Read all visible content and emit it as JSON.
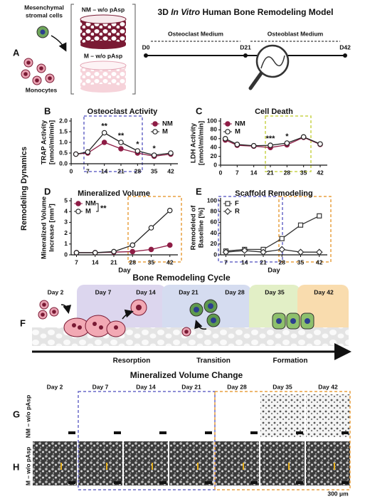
{
  "figure": {
    "panel_labels": [
      "A",
      "B",
      "C",
      "D",
      "E",
      "F",
      "G",
      "H"
    ],
    "model_title": [
      "3D ",
      "In Vitro",
      " Human Bone Remodeling Model"
    ],
    "msc_label": [
      "Mesenchymal",
      "stromal cells"
    ],
    "monocytes_label": "Monocytes",
    "scaffold_nm": "NM – w/o pAsp",
    "scaffold_m": "M – w/o pAsp",
    "timeline": {
      "osteoclast_medium": "Osteoclast Medium",
      "osteoblast_medium": "Osteoblast Medium",
      "days": [
        "D0",
        "D21",
        "D42"
      ]
    },
    "dynamics_label": "Remodeling Dynamics",
    "cycle": {
      "title": "Bone Remodeling Cycle",
      "days": [
        "Day 2",
        "Day 7",
        "Day 14",
        "Day 21",
        "Day 28",
        "Day 35",
        "Day 42"
      ],
      "phases": [
        "Resorption",
        "Transition",
        "Formation"
      ]
    },
    "volume_change": {
      "title": "Mineralized Volume Change",
      "days": [
        "Day 2",
        "Day 7",
        "Day 14",
        "Day 21",
        "Day 28",
        "Day 35",
        "Day 42"
      ],
      "rows": [
        "NM – w/o pAsp",
        "M – w/o pAsp"
      ],
      "scale_bar": "300 μm"
    }
  },
  "chart_data": [
    {
      "type": "line",
      "title": "Osteoclast Activity",
      "ylabel": [
        "TRAP Activity",
        "[nmol/ml/min]"
      ],
      "x": [
        2,
        7,
        14,
        21,
        28,
        35,
        42
      ],
      "xlim": [
        0,
        45
      ],
      "xticks": [
        0,
        7,
        14,
        21,
        28,
        35,
        42
      ],
      "ylim": [
        0,
        2
      ],
      "yticks": [
        {
          "value": 0,
          "label": "0.0"
        },
        {
          "value": 0.5,
          "label": "0.5"
        },
        {
          "value": 1,
          "label": "1.0"
        },
        {
          "value": 1.5,
          "label": "1.5"
        },
        {
          "value": 2,
          "label": "2.0"
        }
      ],
      "legend": "upper right",
      "series": [
        {
          "name": "NM",
          "color": "#8e1c45",
          "marker": "circle",
          "filled": true,
          "values": [
            0.45,
            0.5,
            1.0,
            0.7,
            0.5,
            0.35,
            0.45
          ]
        },
        {
          "name": "M",
          "color": "#222222",
          "marker": "circle",
          "filled": false,
          "values": [
            0.45,
            0.55,
            1.45,
            1.0,
            0.6,
            0.4,
            0.5
          ]
        }
      ],
      "annotations": [
        {
          "x": 14,
          "text": "**"
        },
        {
          "x": 21,
          "text": "**"
        },
        {
          "x": 28,
          "text": "*"
        },
        {
          "x": 35,
          "text": "*"
        }
      ]
    },
    {
      "type": "line",
      "title": "Cell Death",
      "ylabel": [
        "LDH Activity",
        "[nmol/ml/min]"
      ],
      "x": [
        2,
        7,
        14,
        21,
        28,
        35,
        42
      ],
      "xlim": [
        0,
        45
      ],
      "xticks": [
        0,
        7,
        14,
        21,
        28,
        35,
        42
      ],
      "ylim": [
        0,
        100
      ],
      "yticks": [
        0,
        20,
        40,
        60,
        80,
        100
      ],
      "legend": "upper left",
      "series": [
        {
          "name": "NM",
          "color": "#8e1c45",
          "marker": "circle",
          "filled": true,
          "values": [
            57,
            45,
            43,
            40,
            46,
            63,
            47
          ]
        },
        {
          "name": "M",
          "color": "#222222",
          "marker": "circle",
          "filled": false,
          "values": [
            60,
            47,
            44,
            45,
            50,
            64,
            48
          ]
        }
      ],
      "annotations": [
        {
          "x": 21,
          "text": "***"
        },
        {
          "x": 28,
          "text": "*"
        }
      ]
    },
    {
      "type": "line",
      "title": "Mineralized Volume",
      "ylabel": [
        "Mineralized Volume",
        "Increase [mm³]"
      ],
      "xlabel": "Day",
      "x": [
        7,
        14,
        21,
        28,
        35,
        42
      ],
      "xlim": [
        5,
        45
      ],
      "xticks": [
        7,
        14,
        21,
        28,
        35,
        42
      ],
      "ylim": [
        0,
        5
      ],
      "yticks": [
        0,
        1,
        2,
        3,
        4,
        5
      ],
      "legend": "upper left",
      "series": [
        {
          "name": "NM",
          "color": "#8e1c45",
          "marker": "circle",
          "filled": true,
          "values": [
            0.2,
            0.2,
            0.25,
            0.3,
            0.5,
            0.9
          ]
        },
        {
          "name": "M",
          "color": "#222222",
          "marker": "circle",
          "filled": false,
          "values": [
            0.2,
            0.2,
            0.3,
            0.9,
            2.5,
            4.1
          ]
        }
      ],
      "annotations": [
        {
          "text": "**"
        }
      ]
    },
    {
      "type": "line",
      "title": "Scaffold Remodeling",
      "ylabel": [
        "Remodeled of",
        "Baseline [%]"
      ],
      "xlabel": "Day",
      "x": [
        7,
        14,
        21,
        28,
        35,
        42
      ],
      "xlim": [
        5,
        45
      ],
      "xticks": [
        7,
        14,
        21,
        28,
        35,
        42
      ],
      "ylim": [
        0,
        100
      ],
      "yticks": [
        0,
        20,
        40,
        60,
        80,
        100
      ],
      "legend": "upper left",
      "series": [
        {
          "name": "F",
          "color": "#333333",
          "marker": "square",
          "filled": false,
          "values": [
            7,
            10,
            10,
            30,
            55,
            72
          ]
        },
        {
          "name": "R",
          "color": "#333333",
          "marker": "diamond",
          "filled": false,
          "values": [
            5,
            8,
            5,
            10,
            5,
            5
          ]
        }
      ],
      "annotations": []
    }
  ]
}
